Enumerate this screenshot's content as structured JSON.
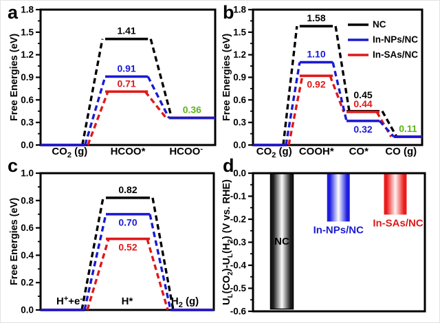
{
  "palette": {
    "black": "#000000",
    "blue": "#1a1ad2",
    "red": "#e01818",
    "green": "#5cb41c"
  },
  "chart_data": [
    {
      "letter": "a",
      "type": "energy",
      "ylabel": "Free Energies (eV)",
      "ylim": [
        0.0,
        1.8
      ],
      "ytick_step": 0.3,
      "ytick_decimals": 1,
      "states": [
        "CO_{2} (g)",
        "HCOO*",
        "HCOO^{-}"
      ],
      "state_labels_inside": false,
      "series": [
        {
          "name": "NC",
          "color_key": "black",
          "values": [
            0.0,
            1.41,
            0.36
          ]
        },
        {
          "name": "In-NPs/NC",
          "color_key": "blue",
          "values": [
            0.0,
            0.91,
            0.36
          ]
        },
        {
          "name": "In-SAs/NC",
          "color_key": "red",
          "values": [
            0.0,
            0.71,
            0.36
          ]
        }
      ],
      "annotations": [
        {
          "text": "1.41",
          "state": 1,
          "value": 1.41,
          "color_key": "black",
          "pos": "above"
        },
        {
          "text": "0.91",
          "state": 1,
          "value": 0.91,
          "color_key": "blue",
          "pos": "above"
        },
        {
          "text": "0.71",
          "state": 1,
          "value": 0.71,
          "color_key": "red",
          "pos": "above"
        },
        {
          "text": "0.36",
          "state": 2,
          "value": 0.36,
          "color_key": "green",
          "pos": "above"
        }
      ],
      "legend": false
    },
    {
      "letter": "b",
      "type": "energy",
      "ylabel": "Free Energies (eV)",
      "ylim": [
        0.0,
        1.8
      ],
      "ytick_step": 0.3,
      "ytick_decimals": 1,
      "states": [
        "CO_{2} (g)",
        "COOH*",
        "CO*",
        "CO (g)"
      ],
      "state_labels_inside": false,
      "series": [
        {
          "name": "NC",
          "color_key": "black",
          "values": [
            0.0,
            1.58,
            0.45,
            0.11
          ]
        },
        {
          "name": "In-NPs/NC",
          "color_key": "blue",
          "values": [
            0.0,
            1.1,
            0.32,
            0.11
          ]
        },
        {
          "name": "In-SAs/NC",
          "color_key": "red",
          "values": [
            0.0,
            0.92,
            0.44,
            0.11
          ]
        }
      ],
      "annotations": [
        {
          "text": "1.58",
          "state": 1,
          "value": 1.58,
          "color_key": "black",
          "pos": "above"
        },
        {
          "text": "1.10",
          "state": 1,
          "value": 1.1,
          "color_key": "blue",
          "pos": "above"
        },
        {
          "text": "0.92",
          "state": 1,
          "value": 0.92,
          "color_key": "red",
          "pos": "below"
        },
        {
          "text": "0.45",
          "state": 2,
          "value": 0.45,
          "color_key": "black",
          "pos": "above"
        },
        {
          "text": "0.44",
          "state": 2,
          "value": 0.44,
          "color_key": "red",
          "pos": "above"
        },
        {
          "text": "0.32",
          "state": 2,
          "value": 0.32,
          "color_key": "blue",
          "pos": "below"
        },
        {
          "text": "0.11",
          "state": 3,
          "value": 0.11,
          "color_key": "green",
          "pos": "above"
        }
      ],
      "legend": true
    },
    {
      "letter": "c",
      "type": "energy",
      "ylabel": "Free Energies (eV)",
      "ylim": [
        0.0,
        1.0
      ],
      "ytick_step": 0.2,
      "ytick_decimals": 1,
      "states": [
        "H^{+}+e^{-}",
        "H*",
        "H_{2} (g)"
      ],
      "state_labels_inside": true,
      "series": [
        {
          "name": "NC",
          "color_key": "black",
          "values": [
            0.0,
            0.82,
            0.0
          ]
        },
        {
          "name": "In-NPs/NC",
          "color_key": "blue",
          "values": [
            0.0,
            0.7,
            0.0
          ]
        },
        {
          "name": "In-SAs/NC",
          "color_key": "red",
          "values": [
            0.0,
            0.52,
            0.0
          ]
        }
      ],
      "annotations": [
        {
          "text": "0.82",
          "state": 1,
          "value": 0.82,
          "color_key": "black",
          "pos": "above"
        },
        {
          "text": "0.70",
          "state": 1,
          "value": 0.7,
          "color_key": "blue",
          "pos": "below"
        },
        {
          "text": "0.52",
          "state": 1,
          "value": 0.52,
          "color_key": "red",
          "pos": "below"
        }
      ],
      "legend": false
    },
    {
      "letter": "d",
      "type": "bar",
      "ylabel": "U_{L}(CO_{2})-U_{L}(H_{2}) (V vs. RHE)",
      "ylim": [
        -0.6,
        0.0
      ],
      "ytick_step": 0.1,
      "ytick_decimals": 1,
      "bars": [
        {
          "name": "NC",
          "value": -0.59,
          "edge_color": "#1a1a1a",
          "mid_color": "#fcfcfc",
          "outline": "#000000",
          "label_color_key": "black",
          "label_pos": "inside"
        },
        {
          "name": "In-NPs/NC",
          "value": -0.21,
          "edge_color": "#1c1ce0",
          "mid_color": "#ffffff",
          "outline": "none",
          "label_color_key": "blue",
          "label_pos": "below"
        },
        {
          "name": "In-SAs/NC",
          "value": -0.18,
          "edge_color": "#ea1c1c",
          "mid_color": "#fff3f3",
          "outline": "none",
          "label_color_key": "red",
          "label_pos": "below"
        }
      ]
    }
  ]
}
